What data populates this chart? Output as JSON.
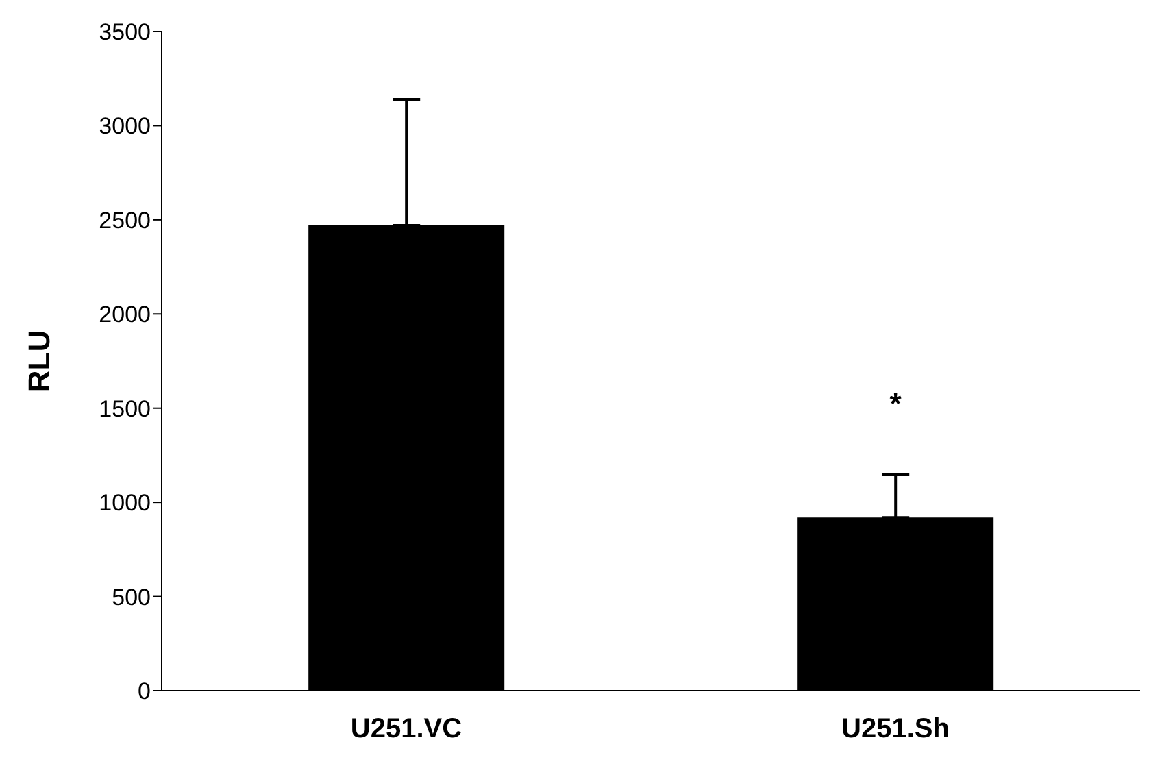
{
  "chart_data": {
    "type": "bar",
    "ylabel": "RLU",
    "categories": [
      "U251.VC",
      "U251.Sh"
    ],
    "values": [
      2470,
      920
    ],
    "errors": [
      [
        2470,
        3140
      ],
      [
        920,
        1150
      ]
    ],
    "color": "#000000",
    "ylim": [
      0,
      3500
    ],
    "yticks": [
      0,
      500,
      1000,
      1500,
      2000,
      2500,
      3000,
      3500
    ],
    "annotations": [
      "*"
    ]
  }
}
